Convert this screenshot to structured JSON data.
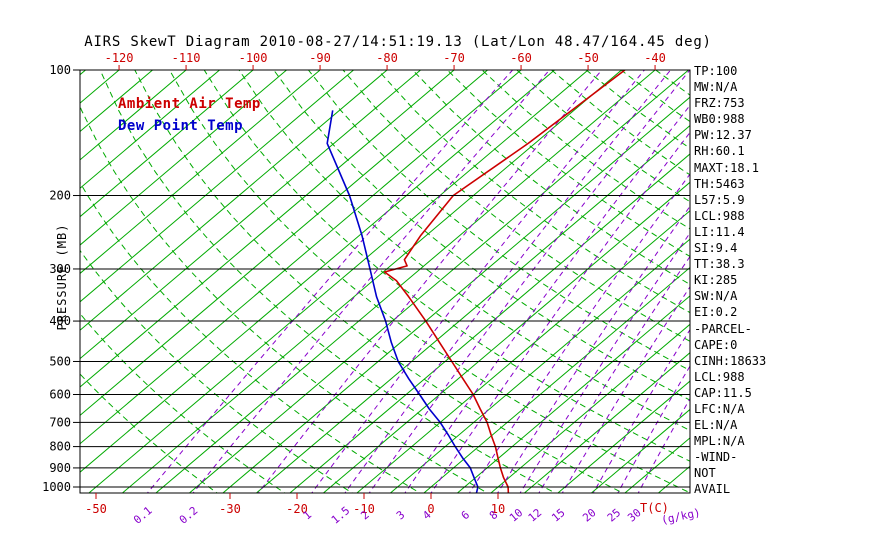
{
  "title": "AIRS SkewT Diagram 2010-08-27/14:51:19.13 (Lat/Lon 48.47/164.45 deg)",
  "legend": {
    "temp": "Ambient Air Temp",
    "dewpoint": "Dew Point Temp"
  },
  "y_axis_title": "PRESSURE (MB)",
  "x_axis_title_temp": "T(C)",
  "x_axis_title_mixratio": "(g/kg)",
  "stats_panel": [
    "TP:100",
    "MW:N/A",
    "FRZ:753",
    "WB0:988",
    "PW:12.37",
    "RH:60.1",
    "MAXT:18.1",
    "TH:5463",
    "L57:5.9",
    "LCL:988",
    "LI:11.4",
    "SI:9.4",
    "TT:38.3",
    "KI:285",
    "SW:N/A",
    "EI:0.2",
    "-PARCEL-",
    "CAPE:0",
    "CINH:18633",
    "LCL:988",
    "CAP:11.5",
    "LFC:N/A",
    "EL:N/A",
    "MPL:N/A",
    "-WIND-",
    "NOT",
    "AVAIL"
  ],
  "colors": {
    "temp": "#cc0000",
    "dewpoint": "#0000cc",
    "isotherm": "#00aa00",
    "adiabat": "#00aa00",
    "mixratio": "#8800cc",
    "axis": "#000000"
  },
  "chart_data": {
    "type": "line",
    "title": "AIRS SkewT Diagram 2010-08-27/14:51:19.13 (Lat/Lon 48.47/164.45 deg)",
    "xlabel": "T(C)",
    "ylabel": "PRESSURE (MB)",
    "y_scale": "log",
    "pressure_ticks_mb": [
      100,
      200,
      300,
      400,
      500,
      600,
      700,
      800,
      900,
      1000
    ],
    "pressure_range_mb": [
      100,
      1050
    ],
    "x_top_ticks_degC": [
      -120,
      -110,
      -100,
      -90,
      -80,
      -70,
      -60,
      -50,
      -40
    ],
    "x_bottom_temp_ticks_degC": [
      -50,
      -30,
      -20,
      -10,
      0,
      10
    ],
    "mixing_ratio_labels_g_kg": [
      0.1,
      0.2,
      1,
      1.5,
      2,
      3,
      4,
      6,
      8,
      10,
      12,
      15,
      20,
      25,
      30
    ],
    "mixing_ratio_lines_g_kg": [
      0.1,
      0.2,
      0.5,
      1,
      1.5,
      2,
      3,
      4,
      6,
      8,
      10,
      12,
      15,
      20,
      25,
      30
    ],
    "isotherms_degC": {
      "min": -130,
      "max": 45,
      "step": 5
    },
    "dry_adiabats_K": {
      "min": 240,
      "max": 500,
      "step": 10
    },
    "series": [
      {
        "name": "Ambient Air Temp",
        "color_key": "temp",
        "points_p_T": [
          [
            1040,
            12.8
          ],
          [
            1000,
            11.5
          ],
          [
            950,
            9.2
          ],
          [
            900,
            7.0
          ],
          [
            850,
            4.8
          ],
          [
            800,
            2.5
          ],
          [
            750,
            -0.2
          ],
          [
            700,
            -3.0
          ],
          [
            650,
            -6.4
          ],
          [
            600,
            -10.0
          ],
          [
            550,
            -14.3
          ],
          [
            500,
            -19.0
          ],
          [
            450,
            -24.2
          ],
          [
            400,
            -30.0
          ],
          [
            350,
            -36.8
          ],
          [
            320,
            -41.5
          ],
          [
            305,
            -44.8
          ],
          [
            295,
            -42.5
          ],
          [
            285,
            -44.0
          ],
          [
            250,
            -45.8
          ],
          [
            200,
            -48.0
          ],
          [
            150,
            -46.0
          ],
          [
            100,
            -44.5
          ]
        ]
      },
      {
        "name": "Dew Point Temp",
        "color_key": "dewpoint",
        "points_p_T": [
          [
            1040,
            8.0
          ],
          [
            1000,
            7.0
          ],
          [
            950,
            4.8
          ],
          [
            900,
            2.5
          ],
          [
            850,
            -0.5
          ],
          [
            800,
            -3.5
          ],
          [
            750,
            -6.6
          ],
          [
            700,
            -10.0
          ],
          [
            650,
            -14.0
          ],
          [
            600,
            -18.0
          ],
          [
            550,
            -22.4
          ],
          [
            500,
            -27.0
          ],
          [
            450,
            -31.4
          ],
          [
            400,
            -36.0
          ],
          [
            350,
            -41.6
          ],
          [
            300,
            -47.5
          ],
          [
            250,
            -54.5
          ],
          [
            200,
            -63.5
          ],
          [
            150,
            -76.0
          ],
          [
            125,
            -81.0
          ]
        ]
      }
    ]
  }
}
